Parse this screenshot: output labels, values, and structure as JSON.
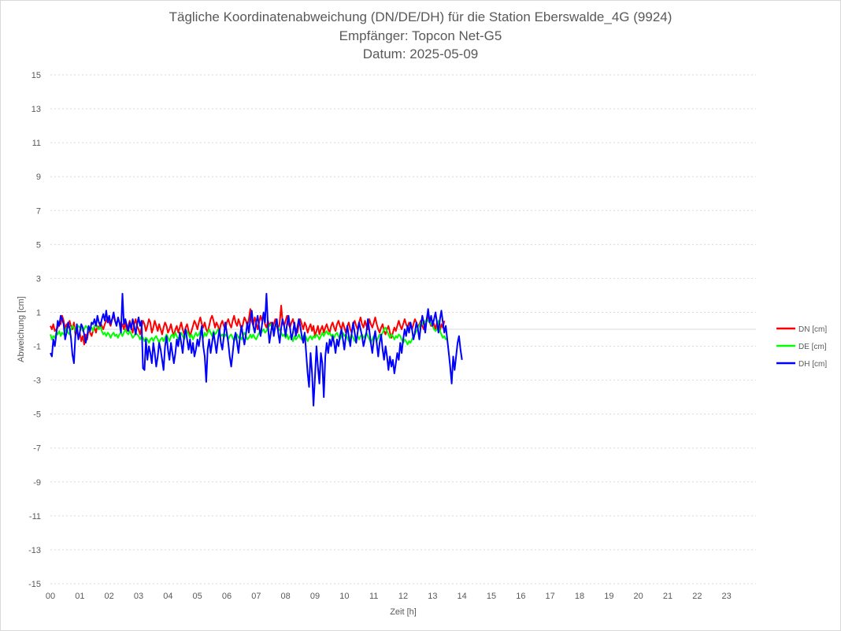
{
  "chart_data": {
    "type": "line",
    "title_lines": [
      "Tägliche Koordinatenabweichung (DN/DE/DH) für die Station Eberswalde_4G (9924)",
      "Empfänger: Topcon Net-G5",
      "Datum: 2025-05-09"
    ],
    "xlabel": "Zeit [h]",
    "ylabel": "Abweichung [cm]",
    "ylim": [
      -15,
      15
    ],
    "yticks": [
      "15",
      "13",
      "11",
      "9",
      "7",
      "5",
      "3",
      "1",
      "-1",
      "-3",
      "-5",
      "-7",
      "-9",
      "-11",
      "-13",
      "-15"
    ],
    "xlim": [
      0,
      24
    ],
    "xticks": [
      "00",
      "01",
      "02",
      "03",
      "04",
      "05",
      "06",
      "07",
      "08",
      "09",
      "10",
      "11",
      "12",
      "13",
      "14",
      "15",
      "16",
      "17",
      "18",
      "19",
      "20",
      "21",
      "22",
      "23"
    ],
    "grid": true,
    "legend_position": "right",
    "x_step_hours": 0.05,
    "series": [
      {
        "name": "DN [cm]",
        "color": "#ff0000",
        "values": [
          0.2,
          0.0,
          0.3,
          -0.1,
          0.0,
          0.1,
          0.4,
          0.3,
          0.8,
          0.5,
          0.0,
          0.3,
          0.1,
          0.5,
          0.2,
          0.0,
          0.4,
          -0.3,
          -0.1,
          -0.5,
          -0.2,
          -0.7,
          -0.4,
          -0.9,
          -0.3,
          -0.6,
          0.0,
          -0.2,
          -0.4,
          -0.1,
          0.1,
          -0.2,
          0.2,
          0.0,
          0.4,
          0.2,
          0.0,
          0.3,
          0.5,
          0.7,
          0.4,
          0.2,
          0.6,
          0.8,
          0.5,
          0.3,
          0.6,
          0.4,
          0.1,
          0.3,
          0.0,
          0.4,
          -0.1,
          0.2,
          0.5,
          0.1,
          -0.2,
          0.3,
          0.6,
          0.2,
          0.0,
          -0.3,
          0.1,
          0.5,
          0.3,
          -0.1,
          0.2,
          0.6,
          0.4,
          -0.2,
          0.1,
          0.5,
          0.2,
          -0.1,
          0.3,
          0.0,
          -0.3,
          0.1,
          0.4,
          0.2,
          -0.2,
          0.0,
          0.3,
          -0.1,
          -0.4,
          0.0,
          0.2,
          -0.2,
          0.1,
          0.4,
          0.0,
          -0.3,
          0.1,
          0.3,
          -0.1,
          -0.4,
          -0.1,
          0.2,
          0.5,
          0.3,
          0.0,
          0.4,
          0.7,
          0.3,
          0.1,
          0.4,
          0.0,
          -0.2,
          0.2,
          0.6,
          0.8,
          0.5,
          0.1,
          0.4,
          0.2,
          -0.1,
          0.3,
          0.5,
          0.2,
          0.0,
          0.4,
          0.6,
          0.3,
          0.1,
          0.5,
          0.8,
          0.4,
          0.2,
          0.6,
          0.3,
          0.0,
          0.3,
          0.7,
          0.5,
          0.2,
          0.6,
          1.2,
          0.5,
          0.2,
          0.7,
          0.4,
          0.0,
          0.4,
          0.8,
          0.5,
          0.9,
          0.3,
          0.1,
          0.5,
          0.2,
          0.4,
          0.0,
          0.3,
          0.6,
          0.2,
          -0.1,
          0.4,
          1.4,
          0.4,
          0.2,
          0.5,
          0.8,
          0.3,
          0.1,
          0.4,
          0.6,
          0.2,
          0.0,
          -0.2,
          0.3,
          0.6,
          0.3,
          0.0,
          0.4,
          0.2,
          -0.2,
          0.1,
          0.3,
          -0.1,
          0.2,
          -0.4,
          -0.1,
          0.2,
          -0.3,
          0.0,
          0.2,
          -0.2,
          0.1,
          0.3,
          0.0,
          -0.2,
          0.2,
          0.4,
          0.1,
          -0.1,
          0.3,
          0.5,
          0.2,
          0.0,
          0.4,
          0.1,
          -0.2,
          0.2,
          0.4,
          0.0,
          -0.2,
          0.3,
          0.5,
          0.2,
          0.0,
          0.4,
          0.7,
          0.3,
          0.1,
          0.5,
          0.2,
          0.0,
          0.6,
          0.3,
          0.1,
          0.4,
          0.7,
          0.3,
          0.0,
          -0.2,
          0.1,
          0.3,
          -0.1,
          -0.3,
          0.0,
          0.2,
          -0.2,
          -0.5,
          -0.2,
          0.1,
          -0.1,
          0.2,
          0.5,
          0.2,
          0.0,
          0.3,
          0.6,
          0.3,
          0.1,
          0.4,
          0.2,
          0.0,
          0.3,
          0.6,
          0.4,
          0.1,
          0.3,
          0.5,
          0.2,
          0.0,
          0.3,
          0.6,
          0.8,
          0.4,
          0.2,
          0.5,
          0.3,
          0.0,
          0.4,
          0.2,
          -0.1,
          0.3,
          0.1,
          0.5
        ],
        "_unused": null
      },
      {
        "name": "DE [cm]",
        "color": "#00ff00",
        "values": [
          -0.3,
          -0.6,
          -0.4,
          -0.5,
          -0.2,
          -0.3,
          -0.1,
          -0.4,
          -0.2,
          -0.3,
          -0.1,
          0.1,
          -0.2,
          -0.3,
          0.0,
          0.2,
          0.1,
          -0.1,
          0.0,
          0.2,
          0.1,
          0.2,
          -0.1,
          0.0,
          0.2,
          0.1,
          -0.1,
          0.0,
          0.1,
          -0.1,
          0.2,
          0.3,
          0.1,
          0.0,
          0.2,
          -0.1,
          -0.3,
          -0.2,
          -0.4,
          -0.2,
          -0.3,
          -0.5,
          -0.3,
          -0.2,
          -0.4,
          -0.3,
          -0.5,
          -0.3,
          -0.2,
          -0.4,
          -0.2,
          0.0,
          -0.2,
          -0.3,
          -0.1,
          -0.3,
          -0.5,
          -0.4,
          -0.2,
          -0.3,
          -0.4,
          -0.6,
          -0.4,
          -0.5,
          -0.7,
          -0.5,
          -0.6,
          -0.8,
          -0.6,
          -0.5,
          -0.7,
          -0.5,
          -0.4,
          -0.6,
          -0.8,
          -0.6,
          -0.5,
          -0.7,
          -0.5,
          -0.3,
          -0.5,
          -0.7,
          -0.4,
          -0.3,
          -0.5,
          -0.2,
          -0.4,
          -0.6,
          -0.4,
          -0.2,
          -0.4,
          -0.6,
          -0.3,
          -0.1,
          -0.3,
          -0.5,
          -0.3,
          -0.6,
          -0.4,
          -0.2,
          -0.4,
          -0.3,
          -0.1,
          -0.3,
          -0.5,
          -0.2,
          -0.4,
          -0.2,
          0.0,
          -0.2,
          -0.4,
          -0.1,
          -0.3,
          -0.2,
          0.0,
          -0.2,
          -0.4,
          -0.3,
          -0.5,
          -0.3,
          -0.4,
          -0.6,
          -0.4,
          -0.3,
          -0.5,
          -0.7,
          -0.5,
          -0.3,
          -0.5,
          -0.4,
          -0.6,
          -0.4,
          -0.2,
          -0.4,
          -0.6,
          -0.5,
          -0.3,
          -0.5,
          -0.3,
          -0.5,
          -0.6,
          -0.4,
          -0.2,
          -0.3,
          -0.1,
          0.0,
          -0.2,
          -0.1,
          0.1,
          0.2,
          0.3,
          0.1,
          0.0,
          0.2,
          0.3,
          0.1,
          0.0,
          -0.2,
          -0.4,
          -0.3,
          -0.5,
          -0.3,
          -0.6,
          -0.4,
          -0.5,
          -0.7,
          -0.4,
          -0.6,
          -0.5,
          -0.3,
          -0.5,
          -0.6,
          -0.4,
          -0.3,
          -0.5,
          -0.7,
          -0.5,
          -0.4,
          -0.6,
          -0.4,
          -0.5,
          -0.3,
          -0.4,
          -0.6,
          -0.4,
          -0.2,
          -0.4,
          -0.2,
          -0.1,
          -0.3,
          -0.2,
          -0.4,
          -0.3,
          -0.5,
          -0.3,
          -0.2,
          -0.4,
          -0.6,
          -0.4,
          -0.2,
          -0.4,
          -0.3,
          -0.5,
          -0.7,
          -0.5,
          -0.3,
          -0.5,
          -0.7,
          -0.5,
          -0.4,
          -0.6,
          -0.4,
          -0.3,
          -0.5,
          -0.4,
          -0.2,
          -0.4,
          -0.6,
          -0.8,
          -0.6,
          -0.4,
          -0.5,
          -0.7,
          -0.5,
          -0.3,
          -0.4,
          -0.2,
          0.0,
          0.1,
          -0.1,
          -0.3,
          -0.5,
          -0.3,
          -0.4,
          -0.6,
          -0.4,
          -0.5,
          -0.3,
          -0.4,
          -0.6,
          -0.8,
          -0.6,
          -0.7,
          -0.9,
          -0.7,
          -0.8,
          -0.6,
          -0.4,
          -0.3,
          -0.1,
          0.0,
          0.2,
          0.4,
          0.3,
          0.5,
          0.4,
          0.6,
          0.5,
          0.4,
          0.3,
          0.2,
          0.0,
          -0.1,
          0.0,
          0.5,
          -0.1,
          -0.3,
          -0.5,
          -0.4,
          -0.6,
          -0.5
        ],
        "_unused": null
      },
      {
        "name": "DH [cm]",
        "color": "#0000ff",
        "values": [
          -1.4,
          -1.6,
          -0.6,
          -1.0,
          -0.3,
          0.5,
          0.2,
          0.8,
          0.6,
          0.3,
          -0.6,
          -0.2,
          0.4,
          0.1,
          -0.5,
          -1.5,
          -2.0,
          -0.4,
          0.3,
          -0.6,
          -0.2,
          0.3,
          0.1,
          -0.3,
          -0.8,
          -0.4,
          0.2,
          -0.1,
          0.4,
          0.3,
          0.6,
          0.2,
          0.8,
          0.4,
          0.2,
          0.6,
          0.9,
          0.5,
          1.1,
          0.4,
          0.8,
          0.3,
          0.6,
          1.0,
          0.5,
          0.2,
          0.7,
          0.4,
          -0.2,
          2.1,
          0.3,
          0.6,
          0.2,
          -0.1,
          0.4,
          0.0,
          0.6,
          0.2,
          -0.3,
          0.3,
          0.7,
          0.2,
          0.5,
          -2.3,
          -2.4,
          -0.6,
          -1.8,
          -1.0,
          -1.4,
          -2.0,
          -0.8,
          -1.4,
          -2.2,
          -1.6,
          -0.8,
          -1.2,
          -1.8,
          -2.4,
          -1.0,
          -0.4,
          -1.2,
          -1.8,
          -0.8,
          -1.4,
          -2.0,
          -1.4,
          -0.6,
          -1.0,
          -0.2,
          -0.8,
          -1.4,
          -0.4,
          0.0,
          -0.6,
          -1.2,
          -0.6,
          -1.4,
          -0.8,
          -1.6,
          -1.2,
          -0.6,
          -1.0,
          -0.4,
          0.2,
          -1.0,
          -1.6,
          -3.1,
          -1.2,
          -0.6,
          -1.4,
          -0.8,
          -0.2,
          -0.8,
          -1.4,
          -0.6,
          0.0,
          -0.8,
          -1.2,
          -0.4,
          0.4,
          -0.2,
          -0.8,
          -1.6,
          -2.2,
          -1.4,
          -0.6,
          -0.2,
          -0.8,
          -1.4,
          -0.4,
          0.2,
          -0.4,
          -0.9,
          -0.3,
          0.4,
          -0.2,
          0.6,
          1.1,
          0.2,
          -0.2,
          0.4,
          0.8,
          0.1,
          -0.4,
          0.3,
          1.0,
          0.4,
          2.1,
          0.2,
          -0.8,
          -0.2,
          0.4,
          -0.4,
          0.2,
          0.6,
          -0.2,
          -0.8,
          0.1,
          0.6,
          0.2,
          -0.4,
          0.3,
          0.8,
          0.1,
          -0.6,
          -0.2,
          0.4,
          -0.4,
          0.1,
          0.6,
          0.2,
          -0.4,
          -0.8,
          -0.2,
          -1.4,
          -2.6,
          -3.4,
          -1.4,
          -2.6,
          -4.5,
          -2.8,
          -1.0,
          -2.2,
          -3.2,
          -1.4,
          -2.0,
          -4.0,
          -1.6,
          -0.8,
          -1.4,
          -0.6,
          -1.0,
          -0.4,
          -0.8,
          -1.4,
          -0.6,
          -1.0,
          -0.4,
          0.0,
          -0.6,
          -1.2,
          -0.4,
          0.2,
          -0.4,
          -1.0,
          -0.2,
          0.4,
          -0.2,
          -0.8,
          -0.2,
          0.4,
          0.0,
          -0.4,
          -1.0,
          -0.6,
          -0.2,
          0.6,
          -0.1,
          -0.8,
          -1.4,
          -0.6,
          -0.1,
          -0.8,
          -1.6,
          -0.8,
          -0.3,
          -1.2,
          -1.8,
          -1.0,
          -1.6,
          -2.4,
          -1.6,
          -2.2,
          -1.8,
          -2.6,
          -2.0,
          -1.4,
          -1.8,
          -0.8,
          -1.4,
          -0.6,
          0.0,
          -0.4,
          0.2,
          -0.2,
          0.4,
          0.0,
          -0.6,
          -0.2,
          0.4,
          0.0,
          -0.6,
          0.2,
          0.8,
          0.4,
          -0.2,
          0.6,
          1.2,
          0.4,
          0.8,
          0.2,
          0.6,
          1.0,
          0.4,
          -0.2,
          0.6,
          1.1,
          0.4,
          -0.2,
          0.2,
          -0.6,
          -1.4,
          -2.2,
          -3.2,
          -1.6,
          -2.4,
          -1.6,
          -0.8,
          -0.4,
          -1.2,
          -1.8
        ],
        "_unused": null
      }
    ]
  }
}
